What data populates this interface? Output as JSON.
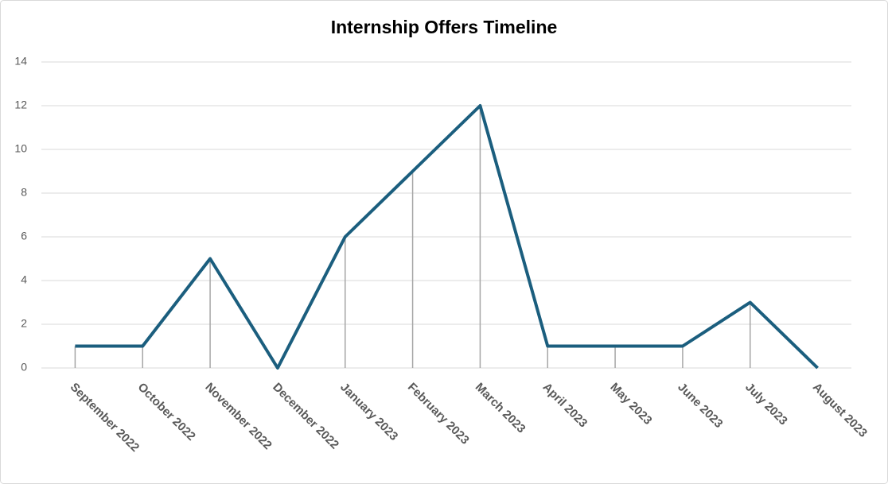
{
  "chart_data": {
    "type": "line",
    "title": "Internship Offers Timeline",
    "categories": [
      "September 2022",
      "October 2022",
      "November 2022",
      "December 2022",
      "January 2023",
      "February 2023",
      "March 2023",
      "April 2023",
      "May 2023",
      "June 2023",
      "July 2023",
      "August 2023"
    ],
    "values": [
      1,
      1,
      5,
      0,
      6,
      9,
      12,
      1,
      1,
      1,
      3,
      0
    ],
    "color": "#1b5e7e",
    "ylim": [
      0,
      14
    ],
    "yticks": [
      0,
      2,
      4,
      6,
      8,
      10,
      12,
      14
    ],
    "grid": true,
    "drop_lines": true
  }
}
